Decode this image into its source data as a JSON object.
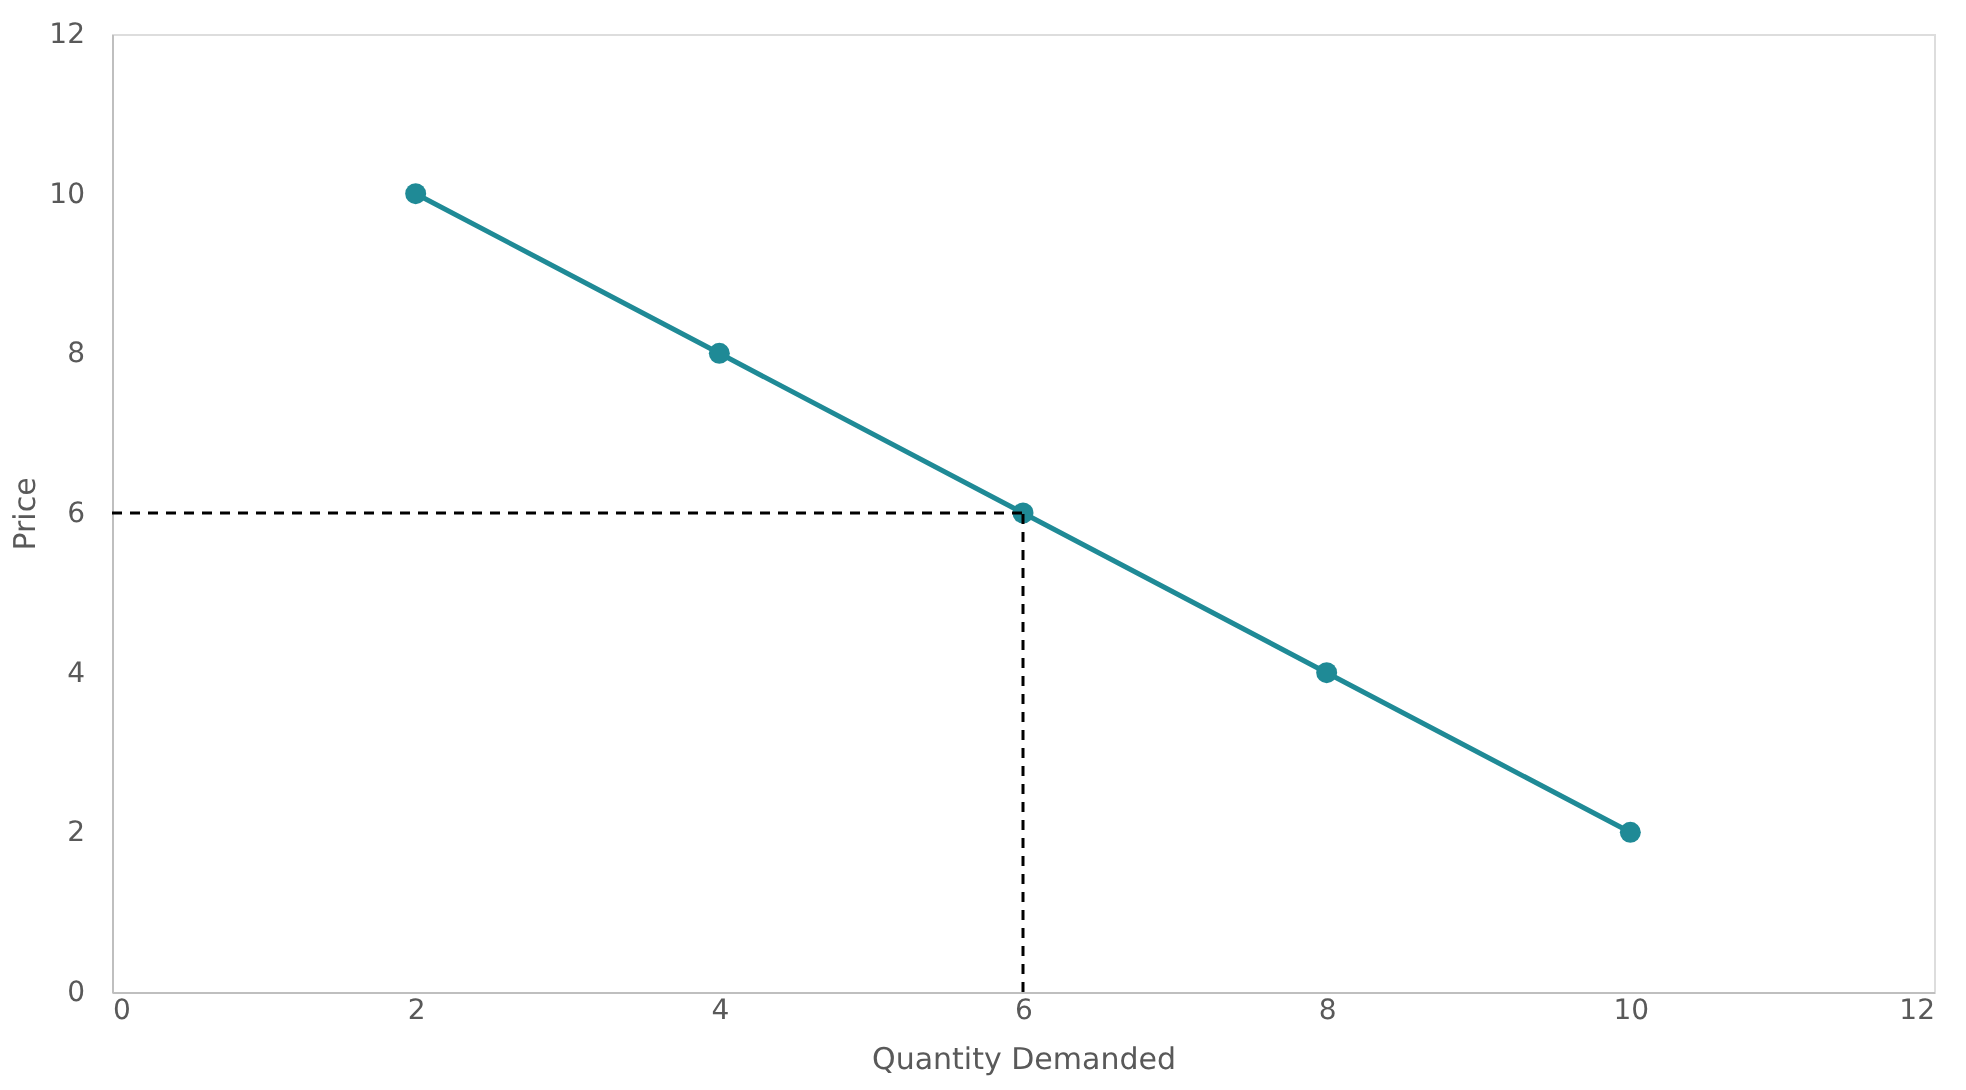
{
  "chart_data": {
    "type": "line",
    "xlabel": "Quantity Demanded",
    "ylabel": "Price",
    "xlim": [
      0,
      12
    ],
    "xticks": [
      0,
      2,
      4,
      6,
      8,
      10,
      12
    ],
    "ylim": [
      0,
      12
    ],
    "yticks": [
      0,
      2,
      4,
      6,
      8,
      10,
      12
    ],
    "grid": false,
    "series": [
      {
        "x": [
          2,
          4,
          6,
          8,
          10
        ],
        "values": [
          10,
          8,
          6,
          4,
          2
        ],
        "color": "#1f8a96",
        "marker": "circle",
        "line_style": "solid"
      },
      {
        "type": "line",
        "x": [
          0,
          6
        ],
        "values": [
          6,
          6
        ],
        "color": "#000000",
        "marker": "none",
        "line_style": "dashed"
      },
      {
        "type": "line",
        "x": [
          6,
          6
        ],
        "values": [
          0,
          6
        ],
        "color": "#000000",
        "marker": "none",
        "line_style": "dashed"
      }
    ]
  }
}
